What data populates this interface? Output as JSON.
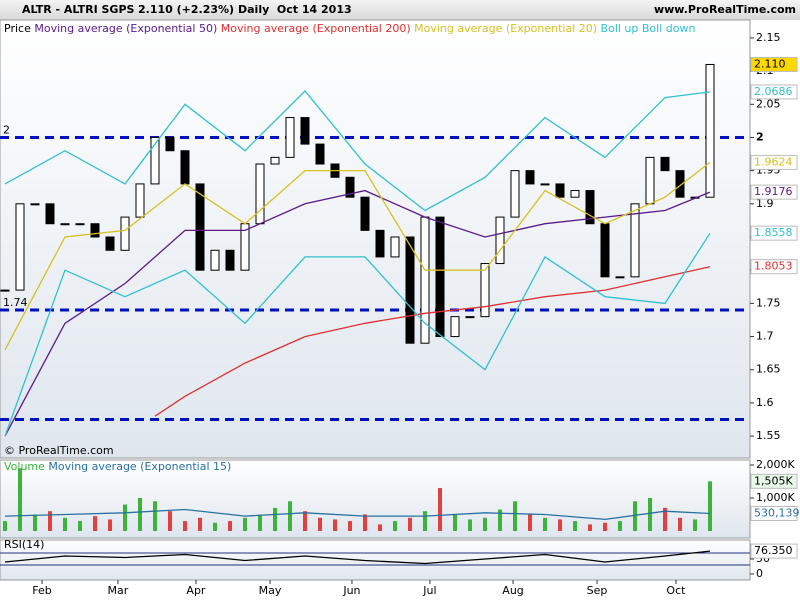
{
  "header": {
    "symbol": "ALTR - ALTRI SGPS",
    "quote": "2.110 (+2.23%)",
    "period": "Daily  Oct 14 2013",
    "site": "www.ProRealTime.com",
    "copyright": "© ProRealTime.com"
  },
  "chart_data": [
    {
      "type": "candlestick",
      "xlim": [
        -0.333,
        49.667
      ],
      "ylim": [
        1.517,
        2.177
      ],
      "yticks": [
        2.15,
        2.1,
        2.05,
        2,
        1.95,
        1.9,
        1.85,
        1.8,
        1.75,
        1.7,
        1.65,
        1.6,
        1.55
      ],
      "xticks": [
        {
          "value": 2.47,
          "label": "Feb"
        },
        {
          "value": 7.53,
          "label": "Mar"
        },
        {
          "value": 12.73,
          "label": "Apr"
        },
        {
          "value": 17.67,
          "label": "May"
        },
        {
          "value": 23.13,
          "label": "Jun"
        },
        {
          "value": 28.33,
          "label": "Jul"
        },
        {
          "value": 33.87,
          "label": "Aug"
        },
        {
          "value": 39.47,
          "label": "Sep"
        },
        {
          "value": 44.73,
          "label": "Oct"
        }
      ],
      "hlines": [
        {
          "value": 2,
          "label": "2"
        },
        {
          "value": 1.74,
          "label": "1.74"
        },
        1.575
      ],
      "series": [
        {
          "name": "Price",
          "color": "#000000",
          "last_label": "2.110",
          "x": [
            0,
            1,
            2,
            3,
            4,
            5,
            6,
            7,
            8,
            9,
            10,
            11,
            12,
            13,
            14,
            15,
            16,
            17,
            18,
            19,
            20,
            21,
            22,
            23,
            24,
            25,
            26,
            27,
            28,
            29,
            30,
            31,
            32,
            33,
            34,
            35,
            36,
            37,
            38,
            39,
            40,
            41,
            42,
            43,
            44,
            45,
            46,
            47
          ],
          "values": [
            1.77,
            1.9,
            1.9,
            1.87,
            1.87,
            1.87,
            1.85,
            1.83,
            1.88,
            1.93,
            2.0,
            1.98,
            1.93,
            1.8,
            1.83,
            1.8,
            1.87,
            1.96,
            1.97,
            2.03,
            1.99,
            1.96,
            1.94,
            1.91,
            1.86,
            1.82,
            1.85,
            1.69,
            1.88,
            1.7,
            1.73,
            1.73,
            1.81,
            1.88,
            1.95,
            1.93,
            1.93,
            1.91,
            1.92,
            1.87,
            1.79,
            1.79,
            1.9,
            1.97,
            1.95,
            1.91,
            1.91,
            2.11
          ]
        },
        {
          "name": "Moving average (Exponential 50)",
          "color": "#5a1a8a",
          "x": [
            0,
            4,
            8,
            12,
            16,
            20,
            24,
            28,
            32,
            36,
            40,
            44,
            47
          ],
          "values": [
            1.55,
            1.72,
            1.78,
            1.86,
            1.86,
            1.9,
            1.92,
            1.88,
            1.85,
            1.87,
            1.88,
            1.89,
            1.9176
          ]
        },
        {
          "name": "Moving average (Exponential 200)",
          "color": "#e03030",
          "x": [
            10,
            12,
            16,
            20,
            24,
            28,
            32,
            36,
            40,
            44,
            47
          ],
          "values": [
            1.58,
            1.61,
            1.66,
            1.7,
            1.72,
            1.735,
            1.745,
            1.76,
            1.77,
            1.79,
            1.8053
          ]
        },
        {
          "name": "Moving average (Exponential 20)",
          "color": "#d8c020",
          "x": [
            0,
            4,
            8,
            12,
            16,
            20,
            24,
            28,
            32,
            36,
            40,
            44,
            47
          ],
          "values": [
            1.68,
            1.85,
            1.86,
            1.93,
            1.87,
            1.95,
            1.95,
            1.8,
            1.8,
            1.92,
            1.87,
            1.91,
            1.9624
          ]
        },
        {
          "name": "Boll up",
          "color": "#30c0d0",
          "x": [
            0,
            4,
            8,
            12,
            16,
            20,
            24,
            28,
            32,
            36,
            40,
            44,
            47
          ],
          "values": [
            1.93,
            1.98,
            1.93,
            2.05,
            1.98,
            2.07,
            1.96,
            1.89,
            1.94,
            2.03,
            1.97,
            2.06,
            2.0686
          ]
        },
        {
          "name": "Boll down",
          "color": "#30c0d0",
          "x": [
            0,
            4,
            8,
            12,
            16,
            20,
            24,
            28,
            32,
            36,
            40,
            44,
            47
          ],
          "values": [
            1.55,
            1.8,
            1.76,
            1.8,
            1.72,
            1.82,
            1.82,
            1.72,
            1.65,
            1.82,
            1.76,
            1.75,
            1.8558
          ]
        }
      ]
    },
    {
      "type": "bar",
      "xlim": [
        -0.333,
        49.667
      ],
      "ylim": [
        0,
        2150
      ],
      "yticks": [
        {
          "value": 2000,
          "label": "2,000K"
        },
        {
          "value": 1000,
          "label": "1,000K"
        }
      ],
      "series": [
        {
          "name": "Volume",
          "color": "#3cb43c",
          "down_color": "#e04040",
          "last_label": "1,505K",
          "x": [
            0,
            1,
            2,
            3,
            4,
            5,
            6,
            7,
            8,
            9,
            10,
            11,
            12,
            13,
            14,
            15,
            16,
            17,
            18,
            19,
            20,
            21,
            22,
            23,
            24,
            25,
            26,
            27,
            28,
            29,
            30,
            31,
            32,
            33,
            34,
            35,
            36,
            37,
            38,
            39,
            40,
            41,
            42,
            43,
            44,
            45,
            46,
            47
          ],
          "values": [
            300,
            1900,
            500,
            600,
            400,
            300,
            450,
            350,
            800,
            1000,
            900,
            600,
            300,
            400,
            250,
            300,
            400,
            500,
            700,
            900,
            600,
            400,
            350,
            300,
            500,
            200,
            300,
            400,
            600,
            1300,
            500,
            350,
            400,
            650,
            900,
            500,
            400,
            350,
            300,
            200,
            250,
            300,
            900,
            1000,
            700,
            400,
            350,
            1505
          ]
        },
        {
          "name": "Moving average (Exponential 15)",
          "color": "#2a70a0",
          "last_label": "530,139",
          "x": [
            0,
            4,
            8,
            12,
            16,
            20,
            24,
            28,
            32,
            36,
            40,
            44,
            47
          ],
          "values": [
            450,
            500,
            550,
            650,
            450,
            550,
            450,
            450,
            550,
            500,
            350,
            600,
            530.139
          ]
        }
      ]
    },
    {
      "type": "line",
      "xlim": [
        -0.333,
        49.667
      ],
      "ylim": [
        0,
        100
      ],
      "yticks": [
        50,
        0
      ],
      "hlines": [
        70,
        30
      ],
      "series": [
        {
          "name": "RSI(14)",
          "color": "#000000",
          "last_label": "76.350",
          "x": [
            0,
            4,
            8,
            12,
            16,
            20,
            24,
            28,
            32,
            36,
            40,
            44,
            47
          ],
          "values": [
            40,
            60,
            55,
            65,
            45,
            60,
            45,
            35,
            50,
            65,
            40,
            60,
            76.35
          ]
        }
      ]
    }
  ]
}
